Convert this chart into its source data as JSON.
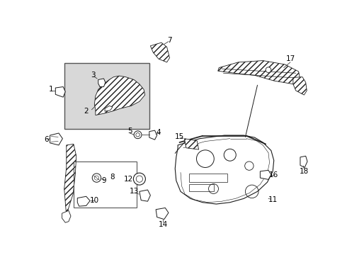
{
  "bg_color": "#ffffff",
  "line_color": "#1a1a1a",
  "label_color": "#000000",
  "box_fill": "#e0e0e0",
  "figsize": [
    4.9,
    3.6
  ],
  "dpi": 100
}
